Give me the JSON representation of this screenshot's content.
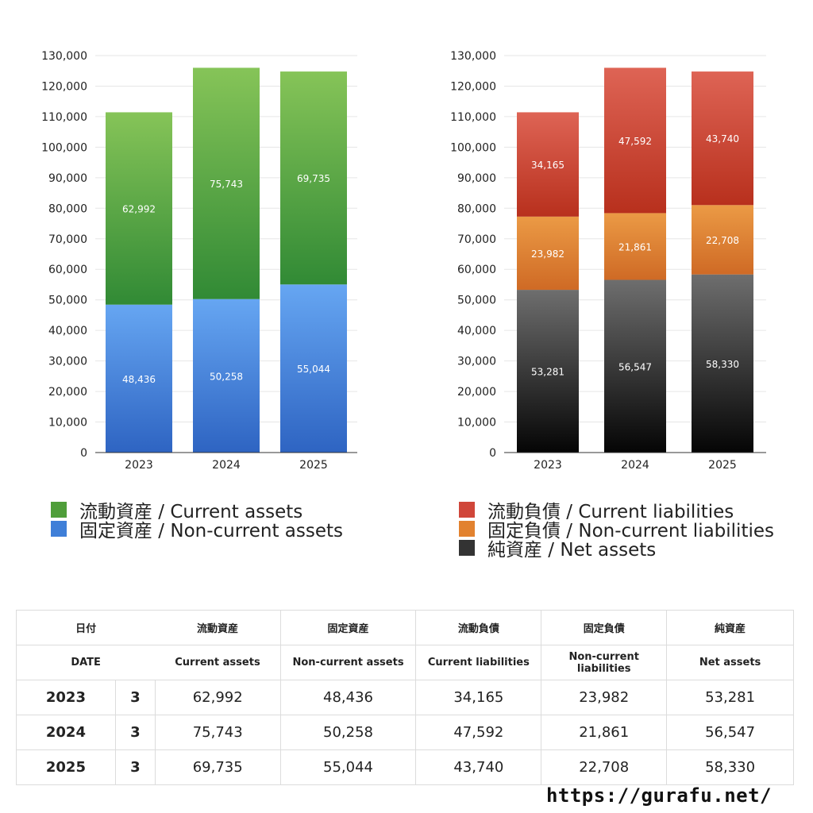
{
  "chart_data": [
    {
      "type": "bar",
      "stacked": true,
      "categories": [
        "2023",
        "2024",
        "2025"
      ],
      "ylim": [
        0,
        130000
      ],
      "yticks": [
        0,
        10000,
        20000,
        30000,
        40000,
        50000,
        60000,
        70000,
        80000,
        90000,
        100000,
        110000,
        120000,
        130000
      ],
      "ytick_labels": [
        "0",
        "10,000",
        "20,000",
        "30,000",
        "40,000",
        "50,000",
        "60,000",
        "70,000",
        "80,000",
        "90,000",
        "100,000",
        "110,000",
        "120,000",
        "130,000"
      ],
      "grid": true,
      "legend_position": "bottom",
      "series": [
        {
          "name": "固定資産 / Non-current assets",
          "values": [
            48436,
            50258,
            55044
          ],
          "labels": [
            "48,436",
            "50,258",
            "55,044"
          ],
          "color_top": "#66a6f2",
          "color_bottom": "#2e64c2"
        },
        {
          "name": "流動資産 / Current assets",
          "values": [
            62992,
            75743,
            69735
          ],
          "labels": [
            "62,992",
            "75,743",
            "69,735"
          ],
          "color_top": "#86c458",
          "color_bottom": "#318a35"
        }
      ]
    },
    {
      "type": "bar",
      "stacked": true,
      "categories": [
        "2023",
        "2024",
        "2025"
      ],
      "ylim": [
        0,
        130000
      ],
      "yticks": [
        0,
        10000,
        20000,
        30000,
        40000,
        50000,
        60000,
        70000,
        80000,
        90000,
        100000,
        110000,
        120000,
        130000
      ],
      "ytick_labels": [
        "0",
        "10,000",
        "20,000",
        "30,000",
        "40,000",
        "50,000",
        "60,000",
        "70,000",
        "80,000",
        "90,000",
        "100,000",
        "110,000",
        "120,000",
        "130,000"
      ],
      "grid": true,
      "legend_position": "bottom",
      "series": [
        {
          "name": "純資産 / Net assets",
          "values": [
            53281,
            56547,
            58330
          ],
          "labels": [
            "53,281",
            "56,547",
            "58,330"
          ],
          "color_top": "#6e6e6e",
          "color_bottom": "#050505"
        },
        {
          "name": "固定負債 / Non-current liabilities",
          "values": [
            23982,
            21861,
            22708
          ],
          "labels": [
            "23,982",
            "21,861",
            "22,708"
          ],
          "color_top": "#eb9a45",
          "color_bottom": "#cf6a25"
        },
        {
          "name": "流動負債 / Current liabilities",
          "values": [
            34165,
            47592,
            43740
          ],
          "labels": [
            "34,165",
            "47,592",
            "43,740"
          ],
          "color_top": "#de6455",
          "color_bottom": "#b8301d"
        }
      ]
    }
  ],
  "legends": {
    "left": [
      {
        "label": "流動資産 / Current assets",
        "color": "#4f9e3a"
      },
      {
        "label": "固定資産 / Non-current assets",
        "color": "#3f7fd8"
      }
    ],
    "right": [
      {
        "label": "流動負債 / Current liabilities",
        "color": "#d0463a"
      },
      {
        "label": "固定負債 / Non-current liabilities",
        "color": "#e2822f"
      },
      {
        "label": "純資産 / Net assets",
        "color": "#333333"
      }
    ]
  },
  "table": {
    "header_jp": [
      "日付",
      "流動資産",
      "固定資産",
      "流動負債",
      "固定負債",
      "純資産"
    ],
    "header_en": [
      "DATE",
      "Current assets",
      "Non-current assets",
      "Current liabilities",
      "Non-current liabilities",
      "Net assets"
    ],
    "rows": [
      {
        "year": "2023",
        "month": "3",
        "values": [
          "62,992",
          "48,436",
          "34,165",
          "23,982",
          "53,281"
        ]
      },
      {
        "year": "2024",
        "month": "3",
        "values": [
          "75,743",
          "50,258",
          "47,592",
          "21,861",
          "56,547"
        ]
      },
      {
        "year": "2025",
        "month": "3",
        "values": [
          "69,735",
          "55,044",
          "43,740",
          "22,708",
          "58,330"
        ]
      }
    ]
  },
  "footer": "https://gurafu.net/"
}
